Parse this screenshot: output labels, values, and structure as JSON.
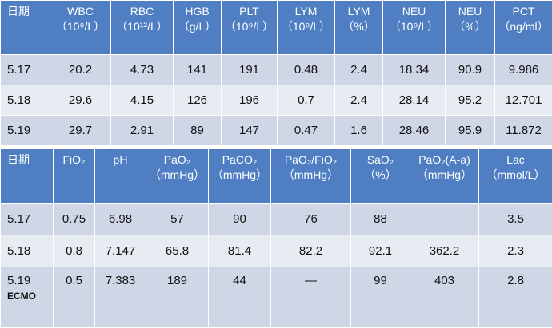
{
  "table1": {
    "headers": [
      {
        "name": "日期",
        "unit": ""
      },
      {
        "name": "WBC",
        "unit": "（10⁹/L）"
      },
      {
        "name": "RBC",
        "unit": "（10¹²/L）"
      },
      {
        "name": "HGB",
        "unit": "（g/L）"
      },
      {
        "name": "PLT",
        "unit": "（10⁹/L）"
      },
      {
        "name": "LYM",
        "unit": "（10⁹/L）"
      },
      {
        "name": "LYM",
        "unit": "（%）"
      },
      {
        "name": "NEU",
        "unit": "（10⁹/L）"
      },
      {
        "name": "NEU",
        "unit": "（%）"
      },
      {
        "name": "PCT",
        "unit": "（ng/ml）"
      }
    ],
    "rows": [
      [
        "5.17",
        "20.2",
        "4.73",
        "141",
        "191",
        "0.48",
        "2.4",
        "18.34",
        "90.9",
        "9.986"
      ],
      [
        "5.18",
        "29.6",
        "4.15",
        "126",
        "196",
        "0.7",
        "2.4",
        "28.14",
        "95.2",
        "12.701"
      ],
      [
        "5.19",
        "29.7",
        "2.91",
        "89",
        "147",
        "0.47",
        "1.6",
        "28.46",
        "95.9",
        "11.872"
      ]
    ]
  },
  "table2": {
    "headers": [
      {
        "name": "日期",
        "unit": ""
      },
      {
        "name": "FiO₂",
        "unit": ""
      },
      {
        "name": "pH",
        "unit": ""
      },
      {
        "name": "PaO₂",
        "unit": "（mmHg）"
      },
      {
        "name": "PaCO₂",
        "unit": "（mmHg）"
      },
      {
        "name": "PaO₂/FiO₂",
        "unit": "（mmHg）"
      },
      {
        "name": "SaO₂",
        "unit": "（%）"
      },
      {
        "name": "PaO₂(A-a)",
        "unit": "（mmHg）"
      },
      {
        "name": "Lac",
        "unit": "（mmol/L）"
      }
    ],
    "rows": [
      [
        "5.17",
        "0.75",
        "6.98",
        "57",
        "90",
        "76",
        "88",
        "",
        "3.5"
      ],
      [
        "5.18",
        "0.8",
        "7.147",
        "65.8",
        "81.4",
        "82.2",
        "92.1",
        "362.2",
        "2.3"
      ],
      [
        "5.19",
        "0.5",
        "7.383",
        "189",
        "44",
        "—",
        "99",
        "403",
        "2.8"
      ]
    ],
    "row3_note": "ECMO"
  }
}
